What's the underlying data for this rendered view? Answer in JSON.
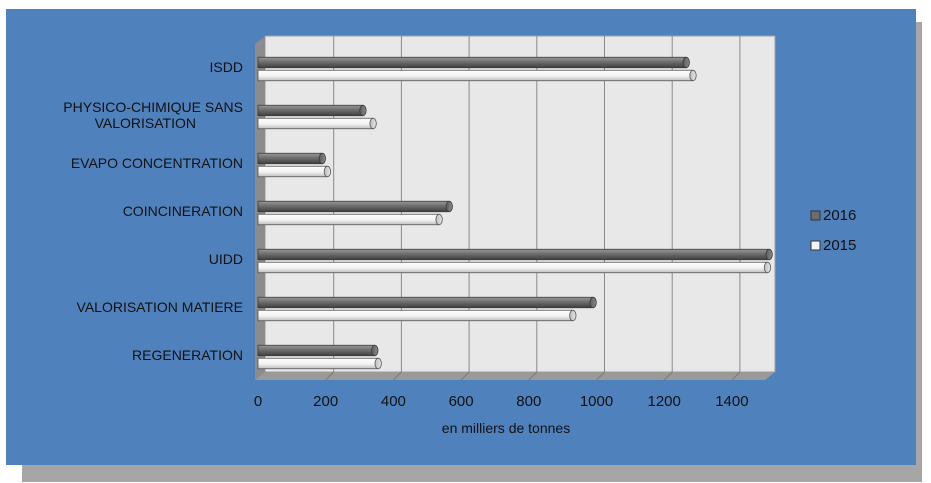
{
  "chart_data": {
    "type": "bar",
    "orientation": "horizontal",
    "categories": [
      "ISDD",
      "PHYSICO-CHIMIQUE SANS VALORISATION",
      "EVAPO CONCENTRATION",
      "COINCINERATION",
      "UIDD",
      "VALORISATION MATIERE",
      "REGENERATION"
    ],
    "category_lines": [
      [
        "ISDD"
      ],
      [
        "PHYSICO-CHIMIQUE SANS",
        "VALORISATION"
      ],
      [
        "EVAPO CONCENTRATION"
      ],
      [
        "COINCINERATION"
      ],
      [
        "UIDD"
      ],
      [
        "VALORISATION MATIERE"
      ],
      [
        "REGENERATION"
      ]
    ],
    "series": [
      {
        "name": "2016",
        "color": "#6d6d6d",
        "values": [
          1265,
          310,
          190,
          565,
          1510,
          990,
          345
        ]
      },
      {
        "name": "2015",
        "color": "#f5f5f5",
        "values": [
          1285,
          340,
          205,
          535,
          1505,
          930,
          355
        ]
      }
    ],
    "xticks": [
      0,
      200,
      400,
      600,
      800,
      1000,
      1200,
      1400
    ],
    "xlim": [
      0,
      1500
    ],
    "xlabel": "en milliers de tonnes",
    "ylabel": "",
    "title": "",
    "grid": true,
    "legend_position": "right",
    "style": "3d-cylinder"
  }
}
